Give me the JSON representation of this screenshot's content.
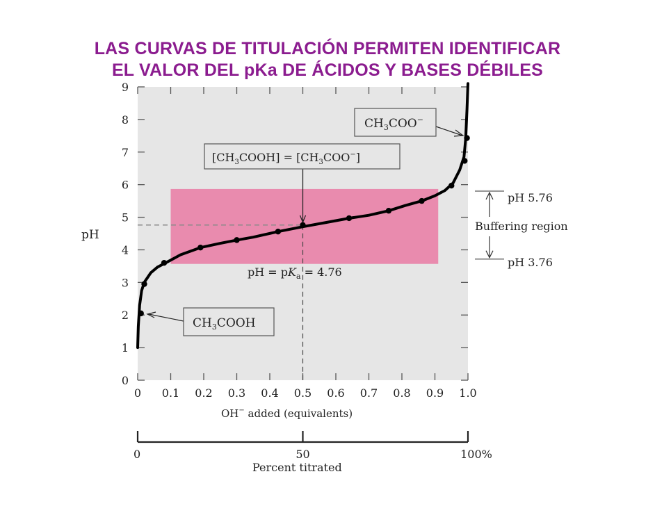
{
  "slide": {
    "title_line1": "LAS CURVAS DE TITULACIÓN  PERMITEN  IDENTIFICAR",
    "title_line2": "EL VALOR DEL pKa DE ÁCIDOS Y BASES DÉBILES"
  },
  "chart_data": {
    "type": "line",
    "xlabel": "OH⁻ added (equivalents)",
    "ylabel": "pH",
    "xlim": [
      0,
      1.0
    ],
    "ylim": [
      0,
      9
    ],
    "x_ticks": [
      "0",
      "0.1",
      "0.2",
      "0.3",
      "0.4",
      "0.5",
      "0.6",
      "0.7",
      "0.8",
      "0.9",
      "1.0"
    ],
    "y_ticks": [
      "0",
      "1",
      "2",
      "3",
      "4",
      "5",
      "6",
      "7",
      "8",
      "9"
    ],
    "curve": {
      "x": [
        0.0,
        0.002,
        0.006,
        0.012,
        0.02,
        0.04,
        0.06,
        0.09,
        0.13,
        0.19,
        0.25,
        0.3,
        0.35,
        0.425,
        0.5,
        0.57,
        0.64,
        0.7,
        0.76,
        0.81,
        0.86,
        0.9,
        0.93,
        0.955,
        0.975,
        0.988,
        0.993,
        0.997,
        1.0
      ],
      "y": [
        1.0,
        1.65,
        2.3,
        2.75,
        3.0,
        3.3,
        3.47,
        3.63,
        3.85,
        4.07,
        4.2,
        4.3,
        4.39,
        4.56,
        4.71,
        4.84,
        4.97,
        5.06,
        5.2,
        5.36,
        5.5,
        5.66,
        5.82,
        6.05,
        6.45,
        6.85,
        7.4,
        8.3,
        9.1
      ]
    },
    "points": {
      "x": [
        0.01,
        0.02,
        0.08,
        0.19,
        0.3,
        0.425,
        0.5,
        0.64,
        0.76,
        0.86,
        0.95,
        0.99,
        0.997
      ],
      "y": [
        2.05,
        2.95,
        3.6,
        4.07,
        4.3,
        4.56,
        4.76,
        4.97,
        5.2,
        5.5,
        5.97,
        6.73,
        7.43
      ]
    },
    "buffer_region": {
      "x": [
        0.1,
        0.91
      ],
      "y": [
        3.76,
        5.76
      ],
      "color": "#e98bae"
    },
    "pka_line": {
      "x": 0.5,
      "y": 4.76
    },
    "annotations": {
      "acetate": "CH3COO⁻",
      "equal": "[CH3COOH] = [CH3COO⁻]",
      "acid": "CH3COOH",
      "pka_label": "pH = pKa = 4.76",
      "ph_high": "pH 5.76",
      "ph_low": "pH 3.76",
      "buffering": "Buffering region"
    },
    "secondary_axis": {
      "label": "Percent titrated",
      "ticks": [
        {
          "value": 0,
          "label": "0"
        },
        {
          "value": 50,
          "label": "50"
        },
        {
          "value": 100,
          "label": "100%"
        }
      ]
    },
    "colors": {
      "plot_bg": "#e6e6e6",
      "curve": "#000000",
      "title": "#8b1c8f",
      "guide": "#999999"
    }
  }
}
